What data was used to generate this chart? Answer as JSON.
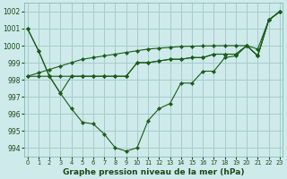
{
  "xlabel": "Graphe pression niveau de la mer (hPa)",
  "background_color": "#ceeaea",
  "grid_color": "#a8cccc",
  "line_color": "#1a5c1a",
  "marker_color": "#1a5c1a",
  "xlim": [
    -0.3,
    23.3
  ],
  "ylim": [
    993.5,
    1002.5
  ],
  "yticks": [
    994,
    995,
    996,
    997,
    998,
    999,
    1000,
    1001,
    1002
  ],
  "xticks": [
    0,
    1,
    2,
    3,
    4,
    5,
    6,
    7,
    8,
    9,
    10,
    11,
    12,
    13,
    14,
    15,
    16,
    17,
    18,
    19,
    20,
    21,
    22,
    23
  ],
  "series": [
    [
      1001.0,
      999.7,
      998.2,
      997.2,
      998.2,
      998.2,
      998.2,
      998.2,
      998.2,
      998.2,
      999.0,
      999.0,
      999.1,
      999.2,
      999.2,
      999.3,
      999.3,
      999.5,
      999.5,
      999.5,
      1000.0,
      999.4,
      1001.5,
      1002.0
    ],
    [
      1001.0,
      999.7,
      998.2,
      997.2,
      996.3,
      995.5,
      995.4,
      994.8,
      994.0,
      993.8,
      994.0,
      995.6,
      996.3,
      996.6,
      997.8,
      997.8,
      998.5,
      998.5,
      999.3,
      999.4,
      1000.0,
      999.4,
      1001.5,
      1002.0
    ],
    [
      998.2,
      998.2,
      998.2,
      998.2,
      998.2,
      998.2,
      998.2,
      998.2,
      998.2,
      998.2,
      999.0,
      999.0,
      999.1,
      999.2,
      999.2,
      999.3,
      999.3,
      999.5,
      999.5,
      999.5,
      1000.0,
      999.4,
      1001.5,
      1002.0
    ],
    [
      998.2,
      998.4,
      998.6,
      998.8,
      999.0,
      999.2,
      999.3,
      999.4,
      999.5,
      999.6,
      999.7,
      999.8,
      999.85,
      999.9,
      999.95,
      999.97,
      999.98,
      999.99,
      1000.0,
      1000.0,
      1000.0,
      999.8,
      1001.5,
      1002.0
    ]
  ]
}
